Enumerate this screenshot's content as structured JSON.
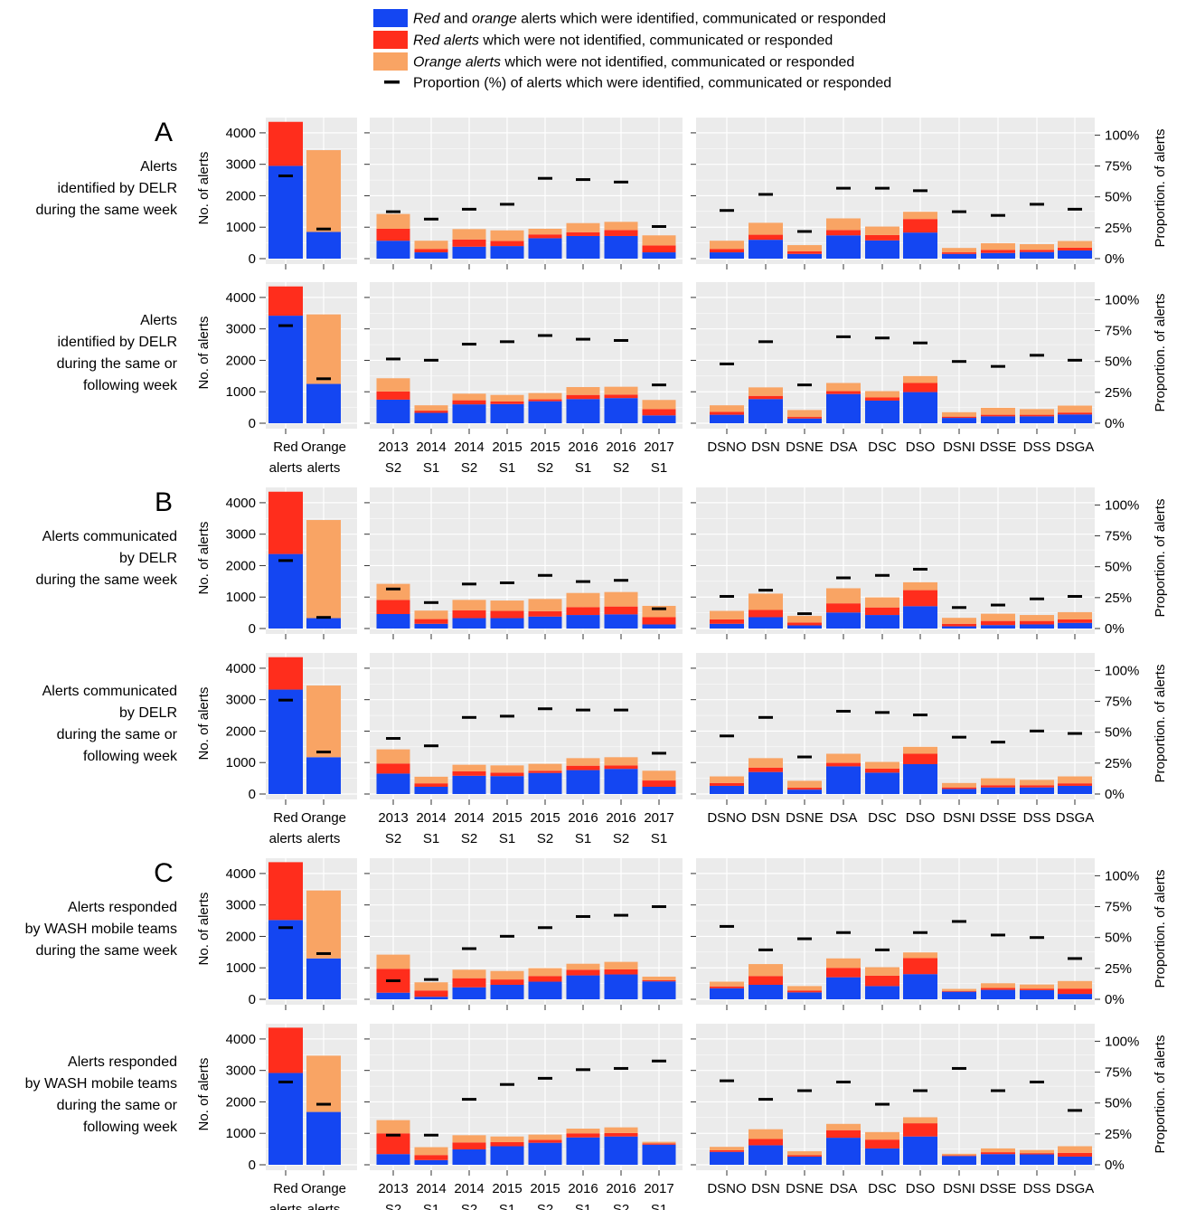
{
  "colors": {
    "identified": "#1446f2",
    "red_not": "#ff2d1c",
    "orange_not": "#f9a464",
    "proportion_mark": "#000000",
    "panel_bg": "#ebebeb",
    "grid": "#ffffff"
  },
  "legend": [
    {
      "key": "identified",
      "parts": [
        {
          "t": "Red",
          "i": true
        },
        {
          "t": " and ",
          "i": false
        },
        {
          "t": "orange",
          "i": true
        },
        {
          "t": " alerts which were identified, communicated or responded",
          "i": false
        }
      ]
    },
    {
      "key": "red_not",
      "parts": [
        {
          "t": "Red alerts",
          "i": true
        },
        {
          "t": " which were not identified, communicated or responded",
          "i": false
        }
      ]
    },
    {
      "key": "orange_not",
      "parts": [
        {
          "t": "Orange alerts",
          "i": true
        },
        {
          "t": " which were not identified, communicated or responded",
          "i": false
        }
      ]
    },
    {
      "key": "proportion",
      "parts": [
        {
          "t": "Proportion (%) of alerts which were identified, communicated or responded",
          "i": false
        }
      ]
    }
  ],
  "axes": {
    "left_label": "No. of alerts",
    "right_label": "Proportion. of alerts",
    "left_ticks": [
      "0",
      "1000",
      "2000",
      "3000",
      "4000"
    ],
    "right_ticks": [
      "0%",
      "25%",
      "50%",
      "75%",
      "100%"
    ],
    "left_ylim": [
      0,
      4400
    ],
    "right_ylim": [
      0,
      1.12
    ]
  },
  "chart_data": {
    "type": "bar",
    "stacked": true,
    "groups": {
      "alert_type": {
        "labels": [
          [
            "Red",
            "alerts"
          ],
          [
            "Orange",
            "alerts"
          ]
        ]
      },
      "semester": {
        "labels": [
          [
            "2013",
            "S2"
          ],
          [
            "2014",
            "S1"
          ],
          [
            "2014",
            "S2"
          ],
          [
            "2015",
            "S1"
          ],
          [
            "2015",
            "S2"
          ],
          [
            "2016",
            "S1"
          ],
          [
            "2016",
            "S2"
          ],
          [
            "2017",
            "S1"
          ]
        ]
      },
      "district": {
        "labels": [
          [
            "DSNO"
          ],
          [
            "DSN"
          ],
          [
            "DSNE"
          ],
          [
            "DSA"
          ],
          [
            "DSC"
          ],
          [
            "DSO"
          ],
          [
            "DSNI"
          ],
          [
            "DSSE"
          ],
          [
            "DSS"
          ],
          [
            "DSGA"
          ]
        ]
      }
    },
    "rows": [
      {
        "letter": "A",
        "title": [
          "Alerts",
          "identified by DELR",
          "during the same week"
        ],
        "show_x": false,
        "alert_type": {
          "identified": [
            2950,
            850
          ],
          "red": [
            1400,
            0
          ],
          "orange": [
            0,
            2600
          ],
          "prop": [
            0.67,
            0.24
          ]
        },
        "semester": {
          "identified": [
            570,
            200,
            380,
            400,
            650,
            720,
            720,
            200
          ],
          "red": [
            380,
            110,
            230,
            160,
            120,
            120,
            190,
            220
          ],
          "orange": [
            470,
            260,
            330,
            340,
            180,
            290,
            260,
            320
          ],
          "prop": [
            0.38,
            0.32,
            0.4,
            0.44,
            0.65,
            0.64,
            0.62,
            0.26
          ]
        },
        "district": {
          "identified": [
            200,
            600,
            150,
            740,
            580,
            830,
            150,
            180,
            210,
            260
          ],
          "red": [
            110,
            160,
            80,
            170,
            170,
            430,
            50,
            100,
            70,
            90
          ],
          "orange": [
            260,
            380,
            200,
            370,
            270,
            230,
            140,
            210,
            180,
            210
          ],
          "prop": [
            0.39,
            0.52,
            0.22,
            0.57,
            0.57,
            0.55,
            0.38,
            0.35,
            0.44,
            0.4
          ]
        }
      },
      {
        "letter": "",
        "title": [
          "Alerts",
          "identified by DELR",
          "during the same or",
          "following week"
        ],
        "show_x": true,
        "alert_type": {
          "identified": [
            3420,
            1250
          ],
          "red": [
            930,
            0
          ],
          "orange": [
            0,
            2210
          ],
          "prop": [
            0.79,
            0.36
          ]
        },
        "semester": {
          "identified": [
            750,
            330,
            600,
            610,
            700,
            770,
            800,
            250
          ],
          "red": [
            260,
            70,
            130,
            80,
            60,
            130,
            110,
            200
          ],
          "orange": [
            420,
            170,
            210,
            210,
            200,
            250,
            250,
            290
          ],
          "prop": [
            0.52,
            0.51,
            0.64,
            0.66,
            0.71,
            0.68,
            0.67,
            0.31
          ]
        },
        "district": {
          "identified": [
            270,
            770,
            150,
            930,
            720,
            990,
            170,
            220,
            220,
            280
          ],
          "red": [
            90,
            100,
            50,
            90,
            100,
            290,
            40,
            50,
            50,
            60
          ],
          "orange": [
            210,
            270,
            220,
            260,
            200,
            220,
            140,
            220,
            180,
            220
          ],
          "prop": [
            0.48,
            0.66,
            0.31,
            0.7,
            0.69,
            0.65,
            0.5,
            0.46,
            0.55,
            0.51
          ]
        }
      },
      {
        "letter": "B",
        "title": [
          "Alerts communicated",
          "by DELR",
          "during the same week"
        ],
        "show_x": false,
        "alert_type": {
          "identified": [
            2370,
            330
          ],
          "red": [
            1980,
            0
          ],
          "orange": [
            0,
            3120
          ],
          "prop": [
            0.55,
            0.09
          ]
        },
        "semester": {
          "identified": [
            460,
            150,
            330,
            330,
            380,
            430,
            450,
            130
          ],
          "red": [
            450,
            150,
            250,
            230,
            170,
            250,
            250,
            230
          ],
          "orange": [
            510,
            270,
            330,
            330,
            390,
            450,
            460,
            360
          ],
          "prop": [
            0.32,
            0.21,
            0.36,
            0.37,
            0.43,
            0.38,
            0.39,
            0.16
          ]
        },
        "district": {
          "identified": [
            150,
            360,
            100,
            510,
            430,
            710,
            70,
            110,
            130,
            180
          ],
          "red": [
            140,
            230,
            90,
            290,
            240,
            510,
            80,
            130,
            110,
            110
          ],
          "orange": [
            270,
            520,
            210,
            480,
            320,
            250,
            190,
            230,
            190,
            230
          ],
          "prop": [
            0.26,
            0.31,
            0.12,
            0.41,
            0.43,
            0.48,
            0.17,
            0.19,
            0.24,
            0.26
          ]
        }
      },
      {
        "letter": "",
        "title": [
          "Alerts communicated",
          "by DELR",
          "during the same or",
          "following week"
        ],
        "show_x": true,
        "alert_type": {
          "identified": [
            3320,
            1170
          ],
          "red": [
            1030,
            0
          ],
          "orange": [
            0,
            2280
          ],
          "prop": [
            0.76,
            0.34
          ]
        },
        "semester": {
          "identified": [
            650,
            230,
            580,
            570,
            670,
            760,
            800,
            230
          ],
          "red": [
            320,
            110,
            140,
            110,
            70,
            140,
            110,
            200
          ],
          "orange": [
            450,
            210,
            210,
            230,
            220,
            240,
            260,
            310
          ],
          "prop": [
            0.45,
            0.39,
            0.62,
            0.63,
            0.69,
            0.68,
            0.68,
            0.33
          ]
        },
        "district": {
          "identified": [
            260,
            700,
            140,
            880,
            680,
            950,
            160,
            210,
            210,
            260
          ],
          "red": [
            90,
            140,
            60,
            110,
            130,
            330,
            50,
            70,
            70,
            80
          ],
          "orange": [
            210,
            300,
            220,
            290,
            210,
            220,
            140,
            220,
            170,
            220
          ],
          "prop": [
            0.47,
            0.62,
            0.3,
            0.67,
            0.66,
            0.64,
            0.46,
            0.42,
            0.51,
            0.49
          ]
        }
      },
      {
        "letter": "C",
        "title": [
          "Alerts responded",
          "by WASH mobile teams",
          "during the same week"
        ],
        "show_x": false,
        "alert_type": {
          "identified": [
            2520,
            1300
          ],
          "red": [
            1840,
            0
          ],
          "orange": [
            0,
            2160
          ],
          "prop": [
            0.58,
            0.37
          ]
        },
        "semester": {
          "identified": [
            210,
            80,
            380,
            460,
            560,
            760,
            790,
            570
          ],
          "red": [
            760,
            200,
            290,
            170,
            180,
            180,
            160,
            40
          ],
          "orange": [
            450,
            260,
            270,
            270,
            250,
            190,
            240,
            110
          ],
          "prop": [
            0.15,
            0.16,
            0.41,
            0.51,
            0.58,
            0.67,
            0.68,
            0.75
          ]
        },
        "district": {
          "identified": [
            350,
            460,
            220,
            700,
            420,
            800,
            240,
            300,
            290,
            170
          ],
          "red": [
            60,
            280,
            60,
            300,
            330,
            510,
            20,
            60,
            50,
            170
          ],
          "orange": [
            150,
            380,
            140,
            300,
            270,
            180,
            70,
            150,
            130,
            240
          ],
          "prop": [
            0.59,
            0.4,
            0.49,
            0.54,
            0.4,
            0.54,
            0.63,
            0.52,
            0.5,
            0.33
          ]
        }
      },
      {
        "letter": "",
        "title": [
          "Alerts responded",
          "by WASH mobile teams",
          "during the same or",
          "following week"
        ],
        "show_x": true,
        "alert_type": {
          "identified": [
            2920,
            1680
          ],
          "red": [
            1440,
            0
          ],
          "orange": [
            0,
            1790
          ],
          "prop": [
            0.67,
            0.49
          ]
        },
        "semester": {
          "identified": [
            340,
            150,
            490,
            590,
            700,
            870,
            900,
            640
          ],
          "red": [
            660,
            160,
            220,
            130,
            90,
            130,
            110,
            40
          ],
          "orange": [
            420,
            250,
            230,
            180,
            170,
            150,
            180,
            50
          ],
          "prop": [
            0.24,
            0.24,
            0.53,
            0.65,
            0.7,
            0.77,
            0.78,
            0.84
          ]
        },
        "district": {
          "identified": [
            410,
            620,
            260,
            860,
            520,
            900,
            280,
            340,
            330,
            260
          ],
          "red": [
            50,
            200,
            50,
            240,
            280,
            420,
            20,
            60,
            40,
            120
          ],
          "orange": [
            110,
            310,
            120,
            200,
            240,
            190,
            50,
            120,
            100,
            210
          ],
          "prop": [
            0.68,
            0.53,
            0.6,
            0.67,
            0.49,
            0.6,
            0.78,
            0.6,
            0.67,
            0.44
          ]
        }
      }
    ]
  }
}
